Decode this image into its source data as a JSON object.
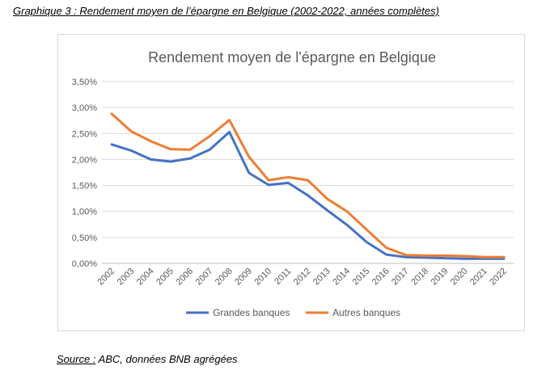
{
  "caption": "Graphique  3 : Rendement moyen de l’épargne en Belgique (2002-2022, années complètes)",
  "source": {
    "label": "Source :",
    "text": " ABC, données BNB agrégées"
  },
  "chart_data": {
    "type": "line",
    "title": "Rendement moyen de l'épargne en Belgique",
    "xlabel": "",
    "ylabel": "",
    "x": [
      "2002",
      "2003",
      "2004",
      "2005",
      "2006",
      "2007",
      "2008",
      "2009",
      "2010",
      "2011",
      "2012",
      "2013",
      "2014",
      "2015",
      "2016",
      "2017",
      "2018",
      "2019",
      "2020",
      "2021",
      "2022"
    ],
    "y_ticks": [
      "0,00%",
      "0,50%",
      "1,00%",
      "1,50%",
      "2,00%",
      "2,50%",
      "3,00%",
      "3,50%"
    ],
    "ylim": [
      0,
      3.5
    ],
    "grid": true,
    "legend_position": "bottom",
    "series": [
      {
        "name": "Grandes banques",
        "color": "#4472c4",
        "values": [
          2.29,
          2.17,
          2.0,
          1.96,
          2.02,
          2.19,
          2.53,
          1.74,
          1.51,
          1.55,
          1.31,
          1.02,
          0.74,
          0.41,
          0.17,
          0.12,
          0.11,
          0.1,
          0.09,
          0.09,
          0.09
        ]
      },
      {
        "name": "Autres banques",
        "color": "#ed7d31",
        "values": [
          2.88,
          2.54,
          2.35,
          2.2,
          2.19,
          2.45,
          2.76,
          2.05,
          1.6,
          1.66,
          1.6,
          1.24,
          1.0,
          0.65,
          0.3,
          0.16,
          0.15,
          0.15,
          0.14,
          0.12,
          0.12
        ]
      }
    ]
  }
}
